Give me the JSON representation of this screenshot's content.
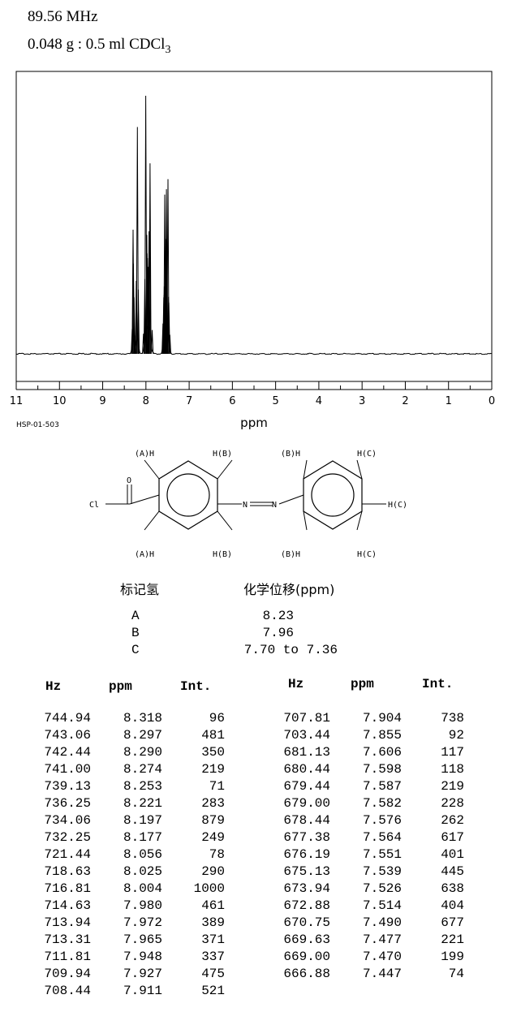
{
  "header": {
    "frequency": "89.56 MHz",
    "sample_main": "0.048 g : 0.5 ml CDCl",
    "sample_sub": "3"
  },
  "chart_data": {
    "type": "line",
    "title": "",
    "xlabel": "ppm",
    "ylabel": "",
    "xlim": [
      11,
      0
    ],
    "x_reversed": true,
    "x_ticks": [
      "11",
      "10",
      "9",
      "8",
      "7",
      "6",
      "5",
      "4",
      "3",
      "2",
      "1",
      "0"
    ],
    "grid": false,
    "spectrum_id": "HSP-01-503",
    "series": [
      {
        "x": [
          8.318,
          8.297,
          8.29,
          8.274,
          8.253,
          8.221,
          8.197,
          8.177,
          8.056,
          8.025,
          8.004,
          7.98,
          7.972,
          7.965,
          7.948,
          7.927,
          7.911,
          7.904,
          7.855,
          7.606,
          7.598,
          7.587,
          7.582,
          7.576,
          7.564,
          7.551,
          7.539,
          7.526,
          7.514,
          7.49,
          7.477,
          7.47,
          7.447
        ],
        "y": [
          96,
          481,
          350,
          219,
          71,
          283,
          879,
          249,
          78,
          290,
          1000,
          461,
          389,
          371,
          337,
          475,
          521,
          738,
          92,
          117,
          118,
          219,
          228,
          262,
          617,
          401,
          445,
          638,
          404,
          677,
          221,
          199,
          74
        ]
      }
    ]
  },
  "structure": {
    "labels": {
      "ring1_top_left": "(A)H",
      "ring1_top_right": "H(B)",
      "ring1_bot_left": "(A)H",
      "ring1_bot_right": "H(B)",
      "ring2_top_left": "(B)H",
      "ring2_top_right": "H(C)",
      "ring2_bot_left": "(B)H",
      "ring2_bot_right": "H(C)",
      "ring2_para": "H(C)",
      "carbonyl_o": "O",
      "acyl_cl": "Cl",
      "azo_n1": "N",
      "azo_n2": "N"
    }
  },
  "assignment": {
    "col_label": "标记氢",
    "col_shift": "化学位移(ppm)",
    "rows": [
      {
        "label": "A",
        "shift": "8.23"
      },
      {
        "label": "B",
        "shift": "7.96"
      },
      {
        "label": "C",
        "shift": "7.70 to 7.36"
      }
    ]
  },
  "peak_table": {
    "headers": [
      "Hz",
      "ppm",
      "Int."
    ],
    "left": [
      [
        "744.94",
        "8.318",
        "96"
      ],
      [
        "743.06",
        "8.297",
        "481"
      ],
      [
        "742.44",
        "8.290",
        "350"
      ],
      [
        "741.00",
        "8.274",
        "219"
      ],
      [
        "739.13",
        "8.253",
        "71"
      ],
      [
        "736.25",
        "8.221",
        "283"
      ],
      [
        "734.06",
        "8.197",
        "879"
      ],
      [
        "732.25",
        "8.177",
        "249"
      ],
      [
        "721.44",
        "8.056",
        "78"
      ],
      [
        "718.63",
        "8.025",
        "290"
      ],
      [
        "716.81",
        "8.004",
        "1000"
      ],
      [
        "714.63",
        "7.980",
        "461"
      ],
      [
        "713.94",
        "7.972",
        "389"
      ],
      [
        "713.31",
        "7.965",
        "371"
      ],
      [
        "711.81",
        "7.948",
        "337"
      ],
      [
        "709.94",
        "7.927",
        "475"
      ],
      [
        "708.44",
        "7.911",
        "521"
      ]
    ],
    "right": [
      [
        "707.81",
        "7.904",
        "738"
      ],
      [
        "703.44",
        "7.855",
        "92"
      ],
      [
        "681.13",
        "7.606",
        "117"
      ],
      [
        "680.44",
        "7.598",
        "118"
      ],
      [
        "679.44",
        "7.587",
        "219"
      ],
      [
        "679.00",
        "7.582",
        "228"
      ],
      [
        "678.44",
        "7.576",
        "262"
      ],
      [
        "677.38",
        "7.564",
        "617"
      ],
      [
        "676.19",
        "7.551",
        "401"
      ],
      [
        "675.13",
        "7.539",
        "445"
      ],
      [
        "673.94",
        "7.526",
        "638"
      ],
      [
        "672.88",
        "7.514",
        "404"
      ],
      [
        "670.75",
        "7.490",
        "677"
      ],
      [
        "669.63",
        "7.477",
        "221"
      ],
      [
        "669.00",
        "7.470",
        "199"
      ],
      [
        "666.88",
        "7.447",
        "74"
      ]
    ]
  }
}
